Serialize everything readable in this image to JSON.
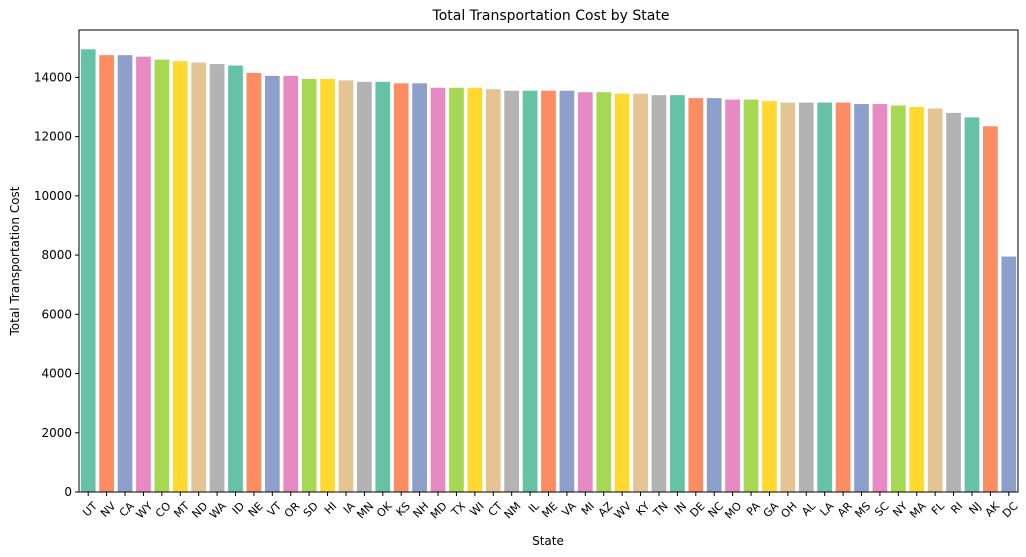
{
  "chart_data": {
    "type": "bar",
    "title": "Total Transportation Cost by State",
    "xlabel": "State",
    "ylabel": "Total Transportation Cost",
    "ylim": [
      0,
      15600
    ],
    "yticks": [
      0,
      2000,
      4000,
      6000,
      8000,
      10000,
      12000,
      14000
    ],
    "grid": false,
    "legend": "none",
    "palette": [
      "#66c2a5",
      "#fc8d62",
      "#8da0cb",
      "#e78ac3",
      "#a6d854",
      "#ffd92f",
      "#e5c494",
      "#b3b3b3"
    ],
    "categories": [
      "UT",
      "NV",
      "CA",
      "WY",
      "CO",
      "MT",
      "ND",
      "WA",
      "ID",
      "NE",
      "VT",
      "OR",
      "SD",
      "HI",
      "IA",
      "MN",
      "OK",
      "KS",
      "NH",
      "MD",
      "TX",
      "WI",
      "CT",
      "NM",
      "IL",
      "ME",
      "VA",
      "MI",
      "AZ",
      "WV",
      "KY",
      "TN",
      "IN",
      "DE",
      "NC",
      "MO",
      "PA",
      "GA",
      "OH",
      "AL",
      "LA",
      "AR",
      "MS",
      "SC",
      "NY",
      "MA",
      "FL",
      "RI",
      "NJ",
      "AK",
      "DC"
    ],
    "values": [
      14950,
      14750,
      14750,
      14700,
      14600,
      14550,
      14500,
      14450,
      14400,
      14150,
      14050,
      14050,
      13950,
      13950,
      13900,
      13850,
      13850,
      13800,
      13800,
      13650,
      13650,
      13650,
      13600,
      13550,
      13550,
      13550,
      13550,
      13500,
      13500,
      13450,
      13450,
      13400,
      13400,
      13300,
      13300,
      13250,
      13250,
      13200,
      13150,
      13150,
      13150,
      13150,
      13100,
      13100,
      13050,
      13000,
      12950,
      12800,
      12650,
      12350,
      7950
    ]
  }
}
